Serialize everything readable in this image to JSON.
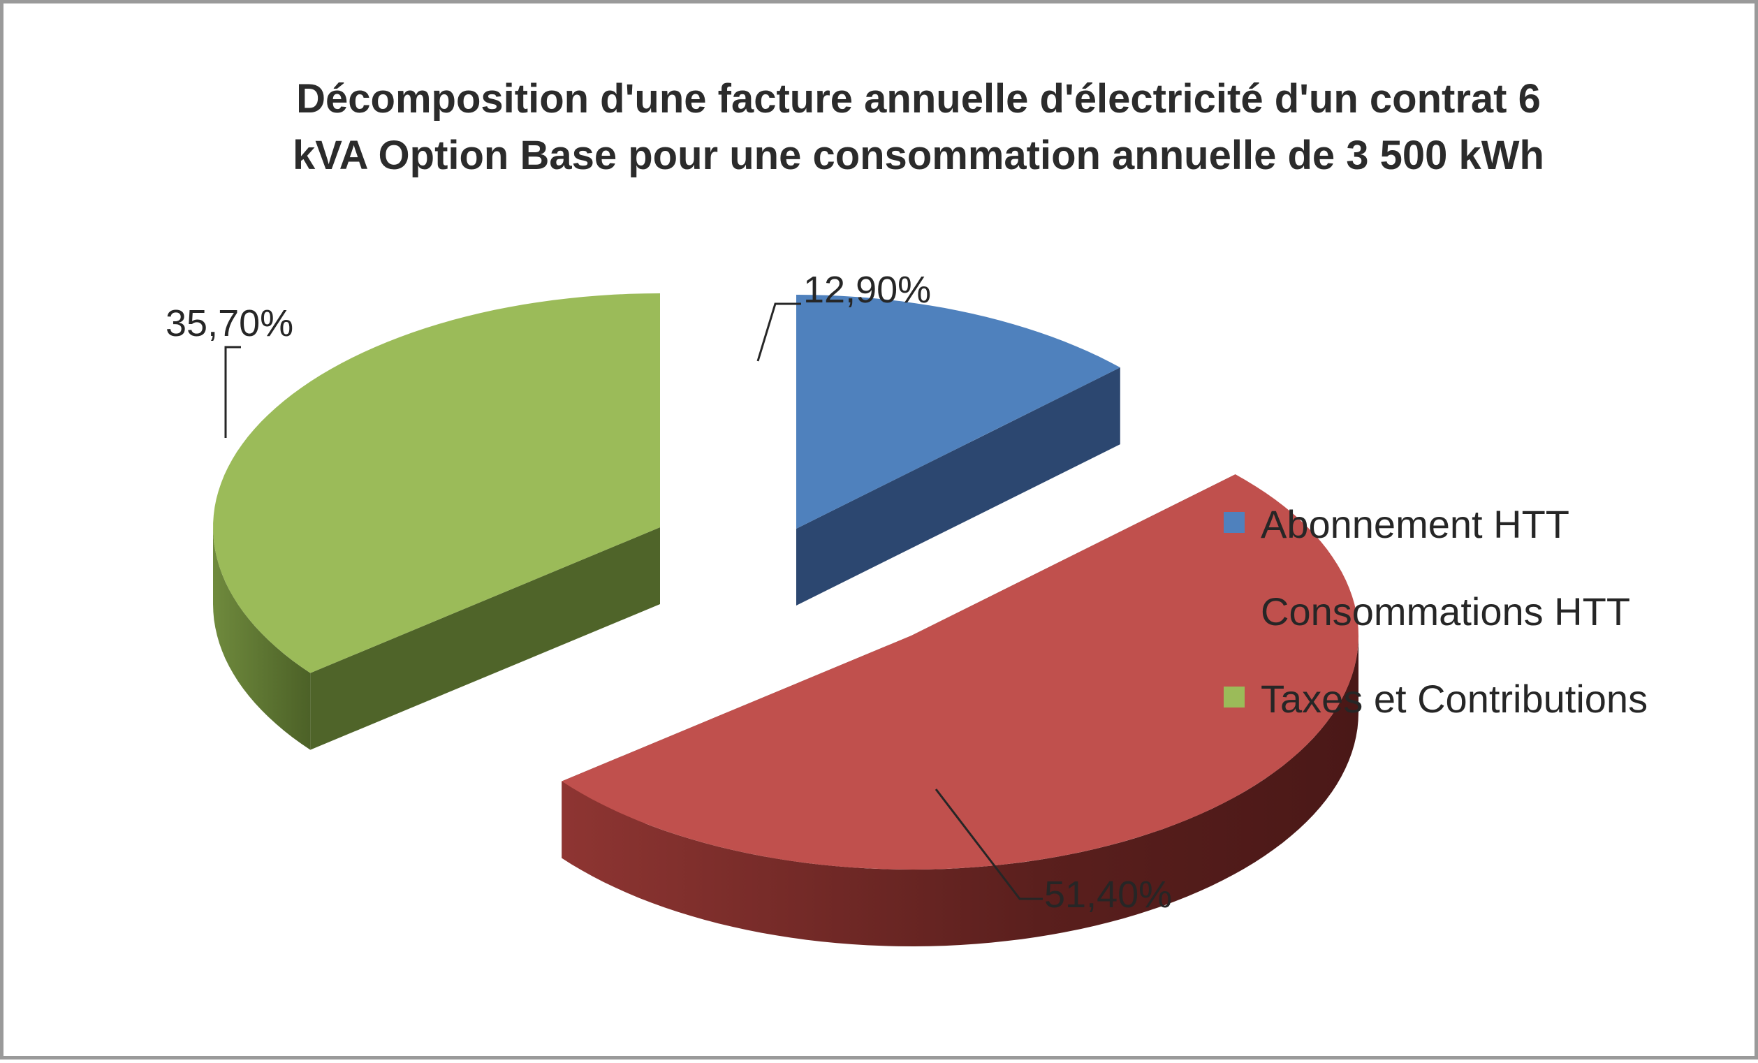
{
  "chart_data": {
    "type": "pie",
    "title": "Décomposition d'une facture annuelle d'électricité d'un contrat 6 kVA Option Base pour une consommation annuelle de 3 500 kWh",
    "title_lines": [
      "Décomposition d'une facture annuelle d'électricité d'un contrat 6",
      "kVA Option Base pour une consommation annuelle de 3 500 kWh"
    ],
    "categories": [
      "Abonnement HTT",
      "Consommations HTT",
      "Taxes et Contributions"
    ],
    "values": [
      12.9,
      51.4,
      35.7
    ],
    "data_labels": [
      "12,90%",
      "51,40%",
      "35,70%"
    ],
    "colors": [
      "#4f81bd",
      "#c0504d",
      "#9bbb59"
    ],
    "side_colors": [
      "#2c4770",
      "#6e2523",
      "#4f6429"
    ],
    "style": "3d-exploded",
    "legend_position": "right"
  }
}
